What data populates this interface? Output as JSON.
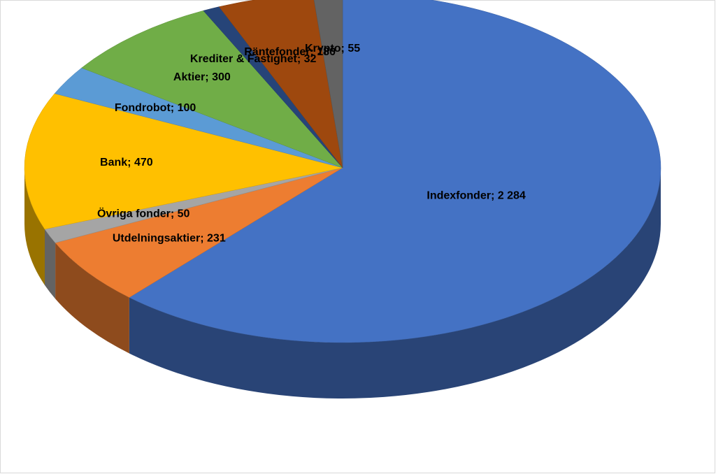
{
  "chart_data": {
    "type": "pie3d",
    "categories": [
      "Indexfonder",
      "Utdelningsaktier",
      "Övriga fonder",
      "Bank",
      "Fondrobot",
      "Aktier",
      "Krediter & Fastighet",
      "Räntefonder",
      "Krypto"
    ],
    "values": [
      2284,
      231,
      50,
      470,
      100,
      300,
      32,
      180,
      55
    ],
    "value_labels": [
      "2 284",
      "231",
      "50",
      "470",
      "100",
      "300",
      "32",
      "180",
      "55"
    ],
    "label_separator": "; ",
    "colors": [
      "#4472c4",
      "#ed7d31",
      "#a5a5a5",
      "#ffc000",
      "#5b9bd5",
      "#70ad47",
      "#264478",
      "#9e480e",
      "#636363"
    ]
  }
}
